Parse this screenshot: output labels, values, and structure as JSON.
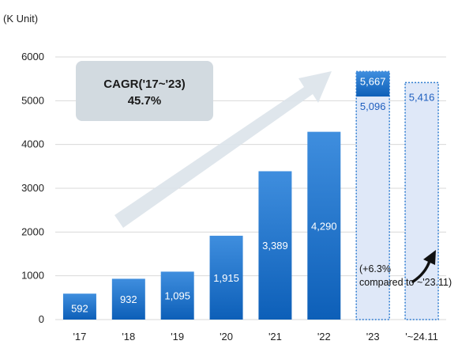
{
  "chart_data": {
    "type": "bar",
    "unit_label": "(K Unit)",
    "categories": [
      "'17",
      "'18",
      "'19",
      "'20",
      "'21",
      "'22",
      "'23",
      "'~24.11"
    ],
    "values": [
      592,
      932,
      1095,
      1915,
      3389,
      4290,
      5667,
      5416
    ],
    "value_labels": [
      "592",
      "932",
      "1,095",
      "1,915",
      "3,389",
      "4,290",
      "5,667",
      "5,416"
    ],
    "overlay": {
      "category": "'23",
      "value": 5096,
      "label": "5,096"
    },
    "ylim": [
      0,
      6000
    ],
    "yticks": [
      "0",
      "1000",
      "2000",
      "3000",
      "4000",
      "5000",
      "6000"
    ],
    "ytick_values": [
      0,
      1000,
      2000,
      3000,
      4000,
      5000,
      6000
    ],
    "grid": true,
    "cagr": {
      "line1": "CAGR('17~'23)",
      "line2": "45.7%"
    },
    "note": {
      "line1": "(+6.3%",
      "line2": "compared to ~'23.11)"
    },
    "colors": {
      "bar_top": "#3f8ede",
      "bar_bottom": "#0d5fb8",
      "forecast_fill": "#dfe8f8",
      "forecast_border": "#2e7bd0",
      "grid": "#d9d9d9",
      "arrow": "#dce3ea",
      "cagr_box": "#d2dae0"
    }
  }
}
